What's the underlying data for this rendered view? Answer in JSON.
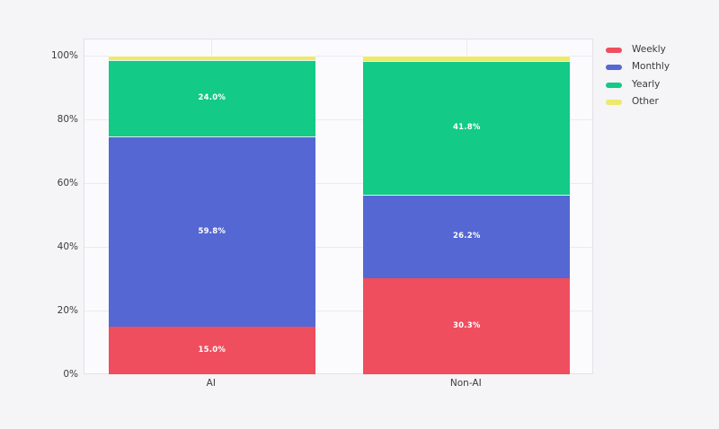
{
  "chart_data": {
    "type": "bar",
    "stacked": true,
    "orientation": "vertical",
    "categories": [
      "AI",
      "Non-AI"
    ],
    "series": [
      {
        "name": "Weekly",
        "color": "#ef4e5f",
        "values": [
          15.0,
          30.3
        ],
        "labels": [
          "15.0%",
          "30.3%"
        ]
      },
      {
        "name": "Monthly",
        "color": "#5467d3",
        "values": [
          59.8,
          26.2
        ],
        "labels": [
          "59.8%",
          "26.2%"
        ]
      },
      {
        "name": "Yearly",
        "color": "#13ca87",
        "values": [
          24.0,
          41.8
        ],
        "labels": [
          "24.0%",
          "41.8%"
        ]
      },
      {
        "name": "Other",
        "color": "#ece96e",
        "values": [
          1.2,
          1.7
        ],
        "labels": [
          "",
          ""
        ]
      }
    ],
    "xlabel": "",
    "ylabel": "",
    "yticks": [
      "0%",
      "20%",
      "40%",
      "60%",
      "80%",
      "100%"
    ],
    "ytick_values": [
      0,
      20,
      40,
      60,
      80,
      100
    ],
    "ylim": [
      0,
      105.4
    ],
    "grid": true,
    "legend_position": "right",
    "colors": {
      "background": "#f5f4f6",
      "plot_background": "#fbfafc",
      "gridline": "#eceaef",
      "axis_text": "#3c3c3c",
      "bar_label_text": "#ffffff"
    }
  }
}
